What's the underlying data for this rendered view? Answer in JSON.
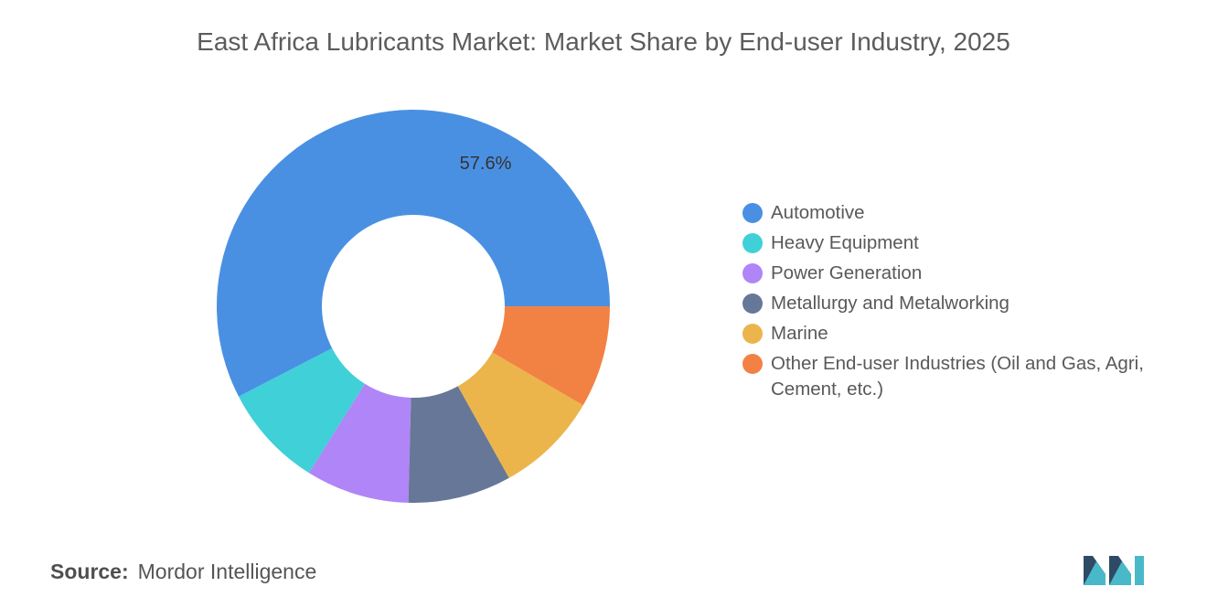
{
  "chart_data": {
    "type": "pie",
    "title": "East Africa Lubricants Market: Market Share by End-user Industry, 2025",
    "categories": [
      "Automotive",
      "Heavy Equipment",
      "Power Generation",
      "Metallurgy and Metalworking",
      "Marine",
      "Other End-user Industries (Oil and Gas, Agri, Cement, etc.)"
    ],
    "values": [
      57.6,
      8.5,
      8.5,
      8.5,
      8.5,
      8.4
    ],
    "data_labels": [
      "57.6%",
      "",
      "",
      "",
      "",
      ""
    ],
    "colors": [
      "#4a90e2",
      "#3fd0d8",
      "#b085f7",
      "#677797",
      "#ebb54b",
      "#f28244"
    ],
    "donut": true,
    "legend_position": "right"
  },
  "source": {
    "label": "Source:",
    "text": "Mordor Intelligence"
  },
  "logo": {
    "icon": "mordor-intelligence-logo",
    "colors": [
      "#2f4a66",
      "#49b9c9"
    ]
  }
}
